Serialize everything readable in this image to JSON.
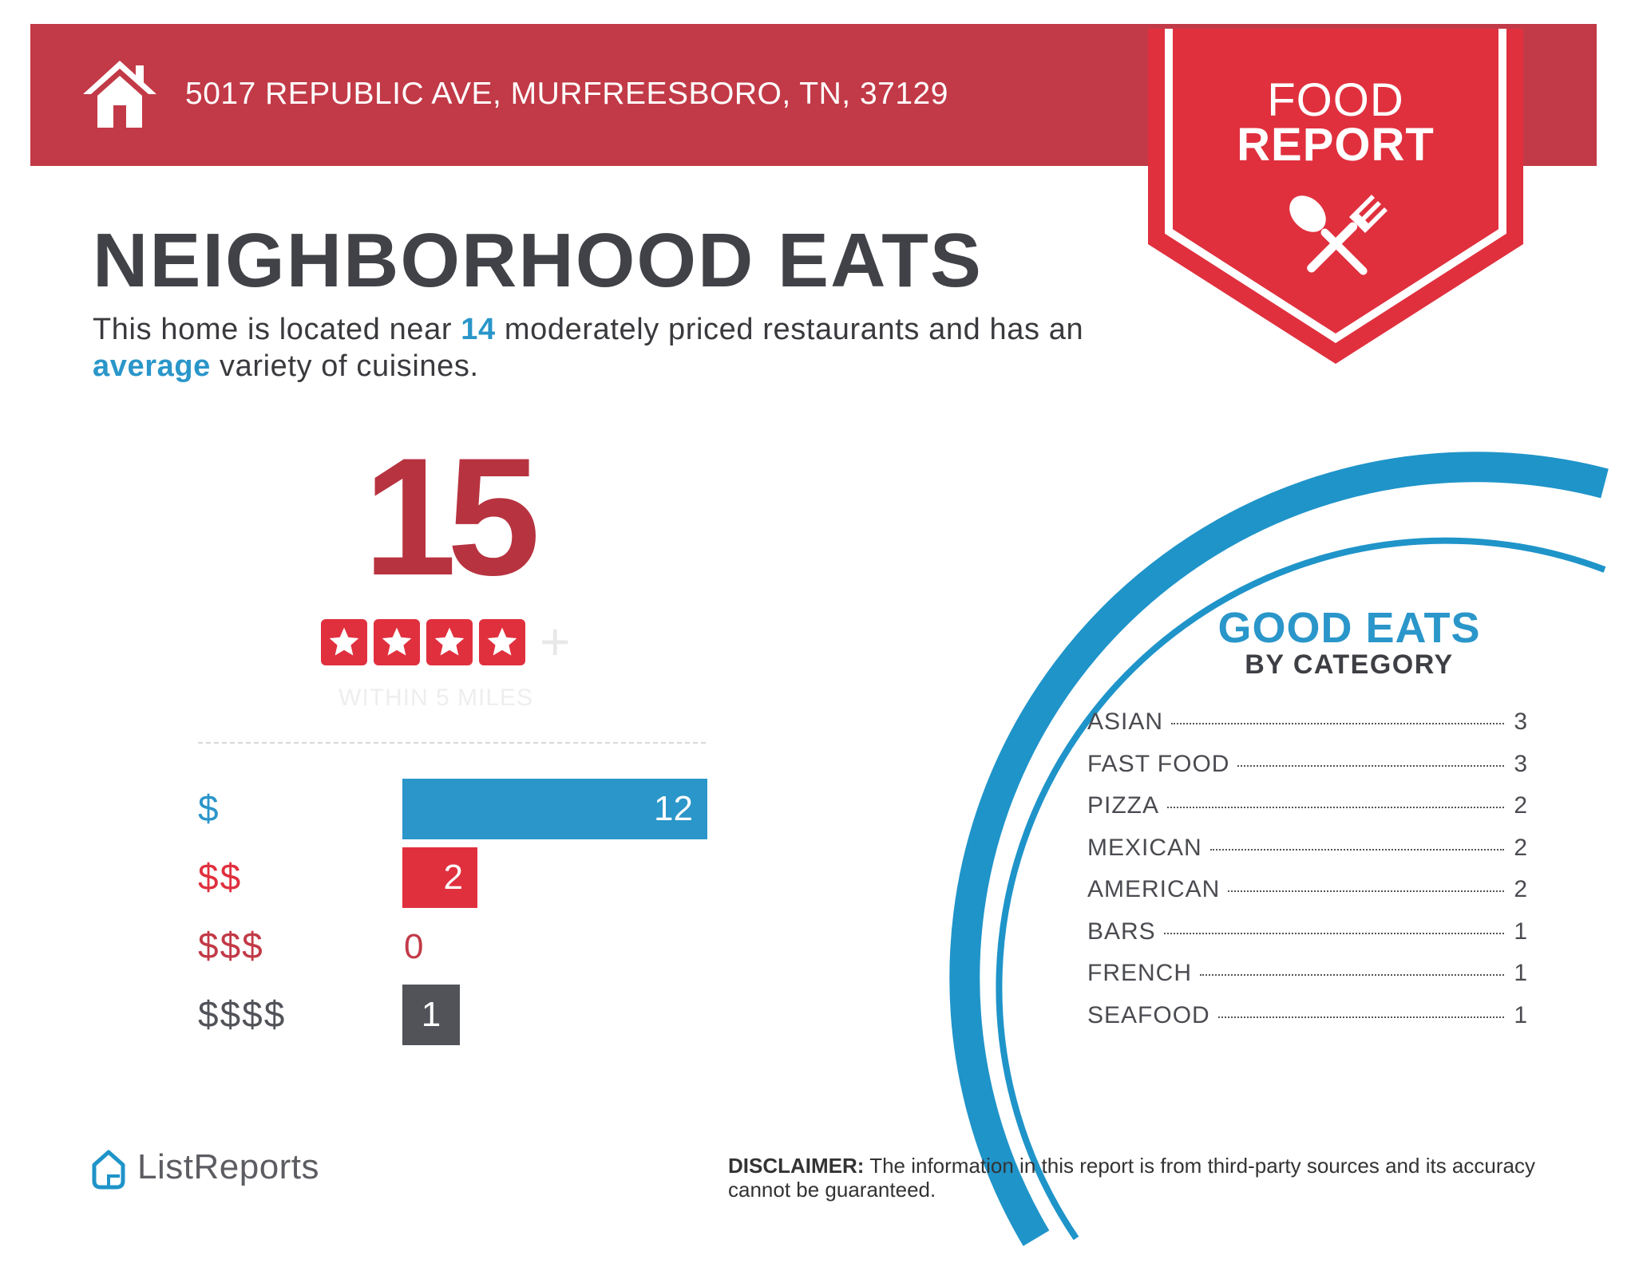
{
  "header": {
    "address": "5017 REPUBLIC AVE, MURFREESBORO, TN, 37129",
    "home_icon": "home-icon"
  },
  "badge": {
    "line1": "FOOD",
    "line2": "REPORT",
    "icon": "spoon-fork-icon"
  },
  "headline": {
    "title": "NEIGHBORHOOD EATS",
    "summary_part1": "This home is located near ",
    "summary_count": "14",
    "summary_part2": " moderately priced restaurants and has an ",
    "summary_variety": "average",
    "summary_part3": " variety of cuisines."
  },
  "rating_summary": {
    "count": "15",
    "stars": 4,
    "plus": "+",
    "within": "WITHIN 5 MILES"
  },
  "price_tiers": [
    {
      "label": "$",
      "count": 12,
      "display": "12",
      "color": "#2a96c9"
    },
    {
      "label": "$$",
      "count": 2,
      "display": "2",
      "color": "#e0303e"
    },
    {
      "label": "$$$",
      "count": 0,
      "display": "0",
      "color": "#c23a47"
    },
    {
      "label": "$$$$",
      "count": 1,
      "display": "1",
      "color": "#515359"
    }
  ],
  "good_eats": {
    "title": "GOOD EATS",
    "subtitle": "BY CATEGORY",
    "categories": [
      {
        "name": "ASIAN",
        "count": "3"
      },
      {
        "name": "FAST FOOD",
        "count": "3"
      },
      {
        "name": "PIZZA",
        "count": "2"
      },
      {
        "name": "MEXICAN",
        "count": "2"
      },
      {
        "name": "AMERICAN",
        "count": "2"
      },
      {
        "name": "BARS",
        "count": "1"
      },
      {
        "name": "FRENCH",
        "count": "1"
      },
      {
        "name": "SEAFOOD",
        "count": "1"
      }
    ]
  },
  "footer": {
    "logo_text": "ListReports",
    "disclaimer_label": "DISCLAIMER:",
    "disclaimer_text": " The information in this report is from third-party sources and its accuracy cannot be guaranteed."
  },
  "colors": {
    "brand_red": "#c23a47",
    "badge_red": "#e0303e",
    "accent_blue": "#2a96c9",
    "dark_gray": "#414247"
  }
}
